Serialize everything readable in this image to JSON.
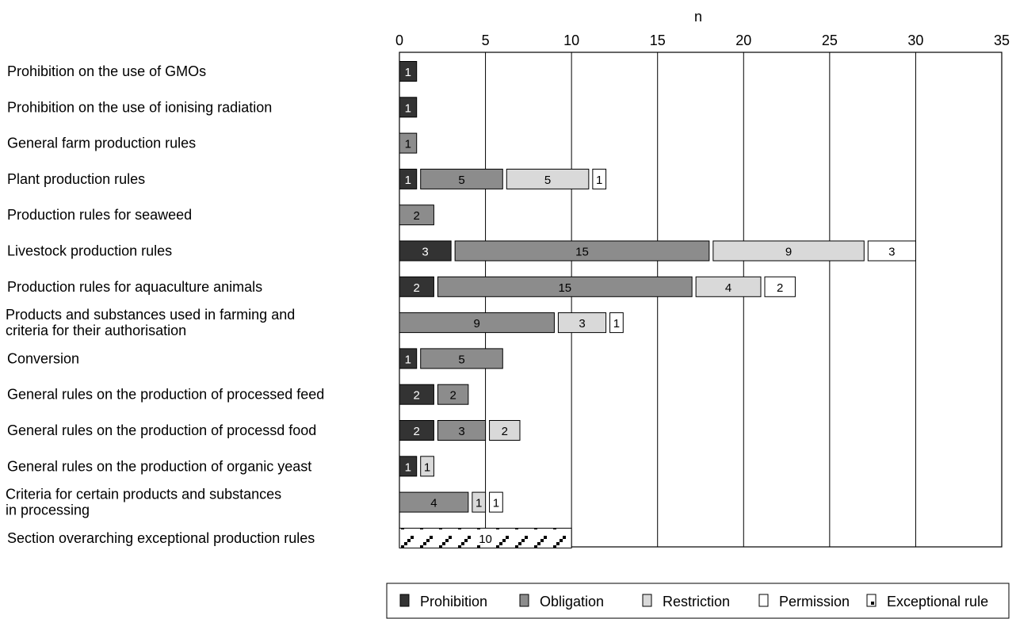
{
  "chart_data": {
    "type": "bar",
    "orientation": "horizontal",
    "stacking": "stacked",
    "xlabel": "n",
    "xlim": [
      0,
      35
    ],
    "xticks": [
      0,
      5,
      10,
      15,
      20,
      25,
      30,
      35
    ],
    "grid": true,
    "legend_position": "bottom",
    "categories": [
      "Prohibition on the use of GMOs",
      "Prohibition on the use of ionising radiation",
      "General farm production rules",
      "Plant production rules",
      "Production rules for seaweed",
      "Livestock production rules",
      "Production rules for aquaculture animals",
      "Products and substances used in farming and\ncriteria for their authorisation",
      "Conversion",
      "General rules on the production of processed feed",
      "General rules on the production of processd food",
      "General rules on the production of organic yeast",
      "Criteria for certain products and substances\nin processing",
      "Section overarching exceptional production rules"
    ],
    "series": [
      {
        "name": "Prohibition",
        "color": "#333333",
        "values": [
          1,
          1,
          0,
          1,
          0,
          3,
          2,
          0,
          1,
          2,
          2,
          1,
          0,
          0
        ]
      },
      {
        "name": "Obligation",
        "color": "#8c8c8c",
        "values": [
          0,
          0,
          1,
          5,
          2,
          15,
          15,
          9,
          5,
          2,
          3,
          0,
          4,
          0
        ]
      },
      {
        "name": "Restriction",
        "color": "#d9d9d9",
        "values": [
          0,
          0,
          0,
          5,
          0,
          9,
          4,
          3,
          0,
          0,
          2,
          1,
          1,
          0
        ]
      },
      {
        "name": "Permission",
        "color": "#ffffff",
        "values": [
          0,
          0,
          0,
          1,
          0,
          3,
          2,
          1,
          0,
          0,
          0,
          0,
          1,
          0
        ]
      },
      {
        "name": "Exceptional rule",
        "color": "#ffffff",
        "pattern": "checker",
        "values": [
          0,
          0,
          0,
          0,
          0,
          0,
          0,
          0,
          0,
          0,
          0,
          0,
          0,
          10
        ]
      }
    ]
  }
}
